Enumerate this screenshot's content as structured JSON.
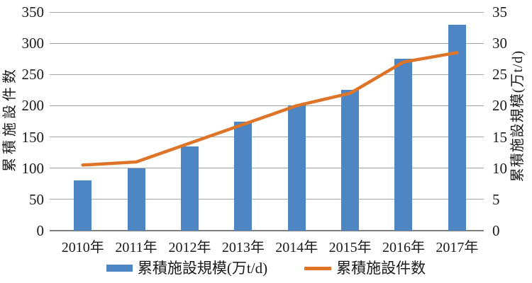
{
  "chart_data": {
    "type": "combo-bar-line",
    "categories": [
      "2010年",
      "2011年",
      "2012年",
      "2013年",
      "2014年",
      "2015年",
      "2016年",
      "2017年"
    ],
    "series": [
      {
        "name": "累積施設規模(万t/d)",
        "type": "bar",
        "axis": "right",
        "color": "#4e86c4",
        "values": [
          8,
          10,
          13.5,
          17.5,
          20,
          22.5,
          27.5,
          33
        ]
      },
      {
        "name": "累積施設件数",
        "type": "line",
        "axis": "left",
        "color": "#de7428",
        "values": [
          105,
          110,
          140,
          170,
          200,
          220,
          270,
          285
        ]
      }
    ],
    "left_axis": {
      "label": "累積施設件数",
      "min": 0,
      "max": 350,
      "step": 50,
      "ticks": [
        "0",
        "50",
        "100",
        "150",
        "200",
        "250",
        "300",
        "350"
      ]
    },
    "right_axis": {
      "label": "累積施設規模(万t/d)",
      "min": 0,
      "max": 35,
      "step": 5,
      "ticks": [
        "0",
        "5",
        "10",
        "15",
        "20",
        "25",
        "30",
        "35"
      ]
    },
    "legend": {
      "position": "bottom"
    },
    "grid": true,
    "colors": {
      "bar": "#4e86c4",
      "line": "#de7428",
      "gridline": "#a6a6a6",
      "axis_line": "#7f7f7f",
      "text": "#1a1a1a"
    }
  }
}
